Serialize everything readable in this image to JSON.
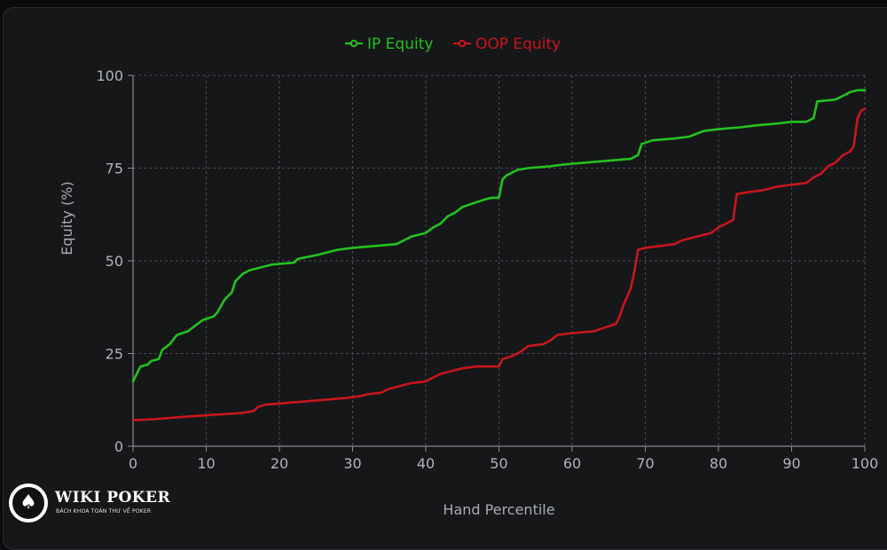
{
  "chart_data": {
    "type": "line",
    "legend_position": "top-center",
    "grid": true,
    "xlabel": "Hand Percentile",
    "ylabel": "Equity (%)",
    "xlim": [
      0,
      100
    ],
    "ylim": [
      0,
      100
    ],
    "x_ticks": [
      0,
      10,
      20,
      30,
      40,
      50,
      60,
      70,
      80,
      90,
      100
    ],
    "y_ticks": [
      0,
      25,
      50,
      75,
      100
    ],
    "series": [
      {
        "name": "IP Equity",
        "color": "#23c21e",
        "points": [
          [
            0,
            17.5
          ],
          [
            0.5,
            19.5
          ],
          [
            1,
            21.5
          ],
          [
            2,
            22
          ],
          [
            2.5,
            23
          ],
          [
            3.5,
            23.5
          ],
          [
            4,
            26
          ],
          [
            5,
            27.5
          ],
          [
            6,
            30
          ],
          [
            7.5,
            31
          ],
          [
            8.5,
            32.5
          ],
          [
            9.5,
            34
          ],
          [
            11,
            35
          ],
          [
            11.5,
            36
          ],
          [
            12.5,
            39.5
          ],
          [
            13.5,
            41.5
          ],
          [
            14,
            44.5
          ],
          [
            14.5,
            45.5
          ],
          [
            15,
            46.5
          ],
          [
            16,
            47.5
          ],
          [
            17,
            48
          ],
          [
            18,
            48.5
          ],
          [
            19,
            49
          ],
          [
            22,
            49.5
          ],
          [
            22.5,
            50.5
          ],
          [
            25,
            51.5
          ],
          [
            27,
            52.5
          ],
          [
            28,
            53
          ],
          [
            30,
            53.5
          ],
          [
            33,
            54
          ],
          [
            36,
            54.5
          ],
          [
            37,
            55.5
          ],
          [
            38,
            56.5
          ],
          [
            40,
            57.5
          ],
          [
            41,
            59
          ],
          [
            42,
            60
          ],
          [
            43,
            62
          ],
          [
            44,
            63
          ],
          [
            45,
            64.5
          ],
          [
            46.5,
            65.5
          ],
          [
            48,
            66.5
          ],
          [
            49,
            67
          ],
          [
            50,
            67
          ],
          [
            50.5,
            72
          ],
          [
            51,
            73
          ],
          [
            52.5,
            74.5
          ],
          [
            54,
            75
          ],
          [
            57,
            75.5
          ],
          [
            59,
            76
          ],
          [
            62,
            76.5
          ],
          [
            65,
            77
          ],
          [
            68,
            77.5
          ],
          [
            69,
            78.5
          ],
          [
            69.5,
            81.5
          ],
          [
            71,
            82.5
          ],
          [
            74,
            83
          ],
          [
            76,
            83.5
          ],
          [
            78,
            85
          ],
          [
            80,
            85.5
          ],
          [
            83,
            86
          ],
          [
            85,
            86.5
          ],
          [
            88,
            87
          ],
          [
            90,
            87.5
          ],
          [
            92,
            87.5
          ],
          [
            93,
            88.5
          ],
          [
            93.5,
            93
          ],
          [
            96,
            93.5
          ],
          [
            97,
            94.5
          ],
          [
            98,
            95.5
          ],
          [
            99,
            96
          ],
          [
            100,
            96
          ]
        ]
      },
      {
        "name": "OOP Equity",
        "color": "#c8161c",
        "points": [
          [
            0,
            7
          ],
          [
            3,
            7.3
          ],
          [
            6,
            7.8
          ],
          [
            9,
            8.2
          ],
          [
            12,
            8.6
          ],
          [
            15,
            9
          ],
          [
            16.5,
            9.5
          ],
          [
            17,
            10.5
          ],
          [
            18,
            11.2
          ],
          [
            20,
            11.5
          ],
          [
            23,
            12
          ],
          [
            26,
            12.5
          ],
          [
            29,
            13
          ],
          [
            31,
            13.5
          ],
          [
            32,
            14
          ],
          [
            34,
            14.5
          ],
          [
            35,
            15.5
          ],
          [
            37,
            16.5
          ],
          [
            38,
            17
          ],
          [
            40,
            17.5
          ],
          [
            41,
            18.5
          ],
          [
            42,
            19.5
          ],
          [
            44,
            20.5
          ],
          [
            45,
            21
          ],
          [
            47,
            21.5
          ],
          [
            50,
            21.5
          ],
          [
            50.5,
            23.5
          ],
          [
            52,
            24.5
          ],
          [
            53,
            25.5
          ],
          [
            54,
            27
          ],
          [
            56,
            27.5
          ],
          [
            57,
            28.5
          ],
          [
            58,
            30
          ],
          [
            60,
            30.5
          ],
          [
            63,
            31
          ],
          [
            64.5,
            32
          ],
          [
            66,
            33
          ],
          [
            66.5,
            35
          ],
          [
            67,
            38
          ],
          [
            68,
            42.5
          ],
          [
            68.5,
            47
          ],
          [
            69,
            53
          ],
          [
            70,
            53.5
          ],
          [
            72,
            54
          ],
          [
            74,
            54.5
          ],
          [
            75,
            55.5
          ],
          [
            77,
            56.5
          ],
          [
            79,
            57.5
          ],
          [
            80,
            59
          ],
          [
            81,
            60
          ],
          [
            82,
            61
          ],
          [
            82.5,
            68
          ],
          [
            84,
            68.5
          ],
          [
            86,
            69
          ],
          [
            88,
            70
          ],
          [
            90,
            70.5
          ],
          [
            92,
            71
          ],
          [
            93,
            72.5
          ],
          [
            94,
            73.5
          ],
          [
            95,
            75.5
          ],
          [
            96,
            76.5
          ],
          [
            97,
            78.5
          ],
          [
            98,
            79.5
          ],
          [
            98.5,
            81
          ],
          [
            99,
            88.5
          ],
          [
            99.5,
            90.5
          ],
          [
            100,
            91
          ]
        ]
      }
    ]
  },
  "watermark": {
    "title": "WIKI POKER",
    "subtitle": "BÁCH KHOA TOÀN THƯ VỀ POKER",
    "icon": "spade-icon"
  },
  "colors": {
    "background": "#161719",
    "grid": "#4a4c52",
    "axis": "#8a8d92",
    "tick_text": "#b0b3b8"
  }
}
